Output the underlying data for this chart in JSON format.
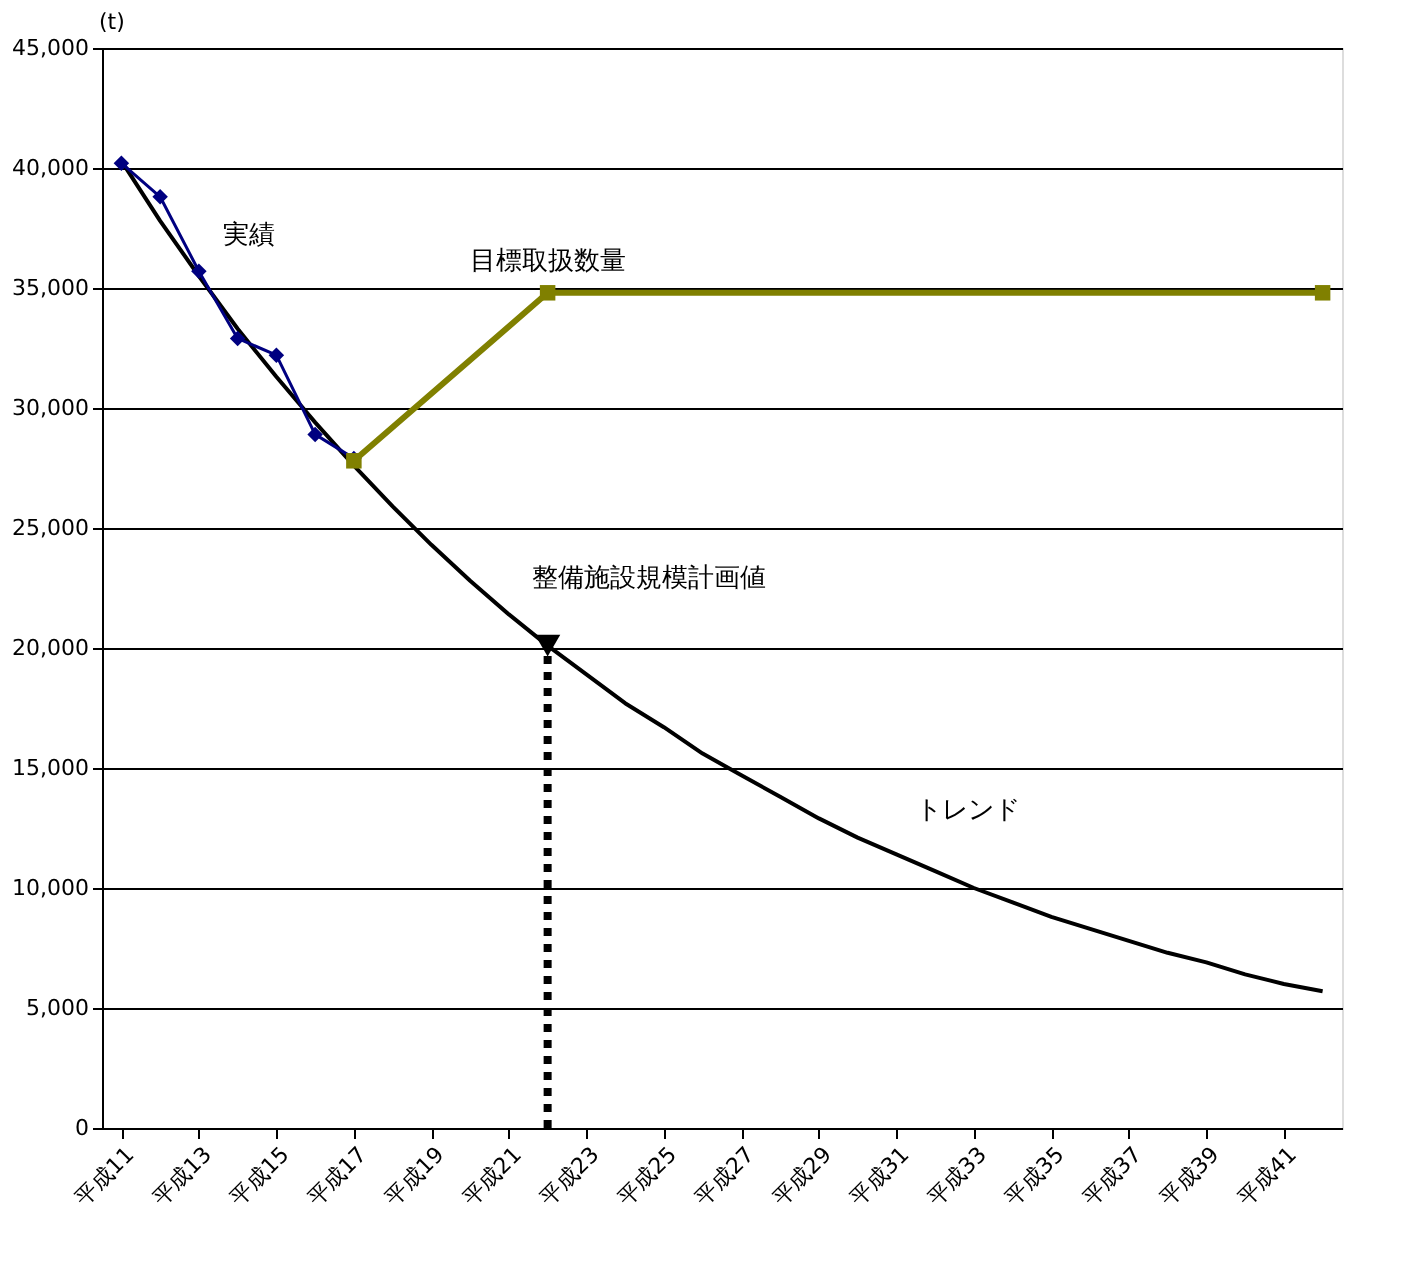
{
  "chart_data": {
    "type": "line",
    "ylabel": "(t)",
    "categories": [
      "平成11",
      null,
      "平成13",
      null,
      "平成15",
      null,
      "平成17",
      null,
      "平成19",
      null,
      "平成21",
      null,
      "平成23",
      null,
      "平成25",
      null,
      "平成27",
      null,
      "平成29",
      null,
      "平成31",
      null,
      "平成33",
      null,
      "平成35",
      null,
      "平成37",
      null,
      "平成39",
      null,
      "平成41",
      null
    ],
    "series": [
      {
        "name": "トレンド",
        "color": "#000000",
        "marker": "none",
        "values": [
          40300,
          37800,
          35500,
          33300,
          31300,
          29400,
          27600,
          25900,
          24300,
          22800,
          21400,
          20100,
          18900,
          17700,
          16700,
          15600,
          14700,
          13800,
          12900,
          12100,
          11400,
          10700,
          10000,
          9400,
          8800,
          8300,
          7800,
          7300,
          6900,
          6400,
          6000,
          5700
        ]
      },
      {
        "name": "実績",
        "color": "#000080",
        "marker": "diamond",
        "values": [
          40200,
          38800,
          35700,
          32900,
          32200,
          28900,
          27900,
          null,
          null,
          null,
          null,
          null,
          null,
          null,
          null,
          null,
          null,
          null,
          null,
          null,
          null,
          null,
          null,
          null,
          null,
          null,
          null,
          null,
          null,
          null,
          null,
          null
        ]
      },
      {
        "name": "目標取扱数量",
        "color": "#808000",
        "marker": "square",
        "values": [
          null,
          null,
          null,
          null,
          null,
          null,
          27800,
          null,
          null,
          null,
          null,
          34800,
          null,
          null,
          null,
          null,
          null,
          null,
          null,
          null,
          null,
          null,
          null,
          null,
          null,
          null,
          null,
          null,
          null,
          null,
          null,
          34800
        ]
      },
      {
        "type": "lollipop",
        "color": "#000000",
        "marker": "triangle",
        "line_style": "dotted",
        "values": [
          null,
          null,
          null,
          null,
          null,
          null,
          null,
          null,
          null,
          null,
          null,
          20100,
          null,
          null,
          null,
          null,
          null,
          null,
          null,
          null,
          null,
          null,
          null,
          null,
          null,
          null,
          null,
          null,
          null,
          null,
          null,
          null
        ]
      }
    ],
    "annotations": [
      "整備施設規模計画値"
    ],
    "ylim": [
      0,
      45000
    ],
    "yticks": [
      0,
      {
        "value": 5000,
        "label": "5,000"
      },
      {
        "value": 10000,
        "label": "10,000"
      },
      {
        "value": 15000,
        "label": "15,000"
      },
      {
        "value": 20000,
        "label": "20,000"
      },
      {
        "value": 25000,
        "label": "25,000"
      },
      {
        "value": 30000,
        "label": "30,000"
      },
      {
        "value": 35000,
        "label": "35,000"
      },
      {
        "value": 40000,
        "label": "40,000"
      },
      {
        "value": 45000,
        "label": "45,000"
      }
    ],
    "grid": "y"
  }
}
